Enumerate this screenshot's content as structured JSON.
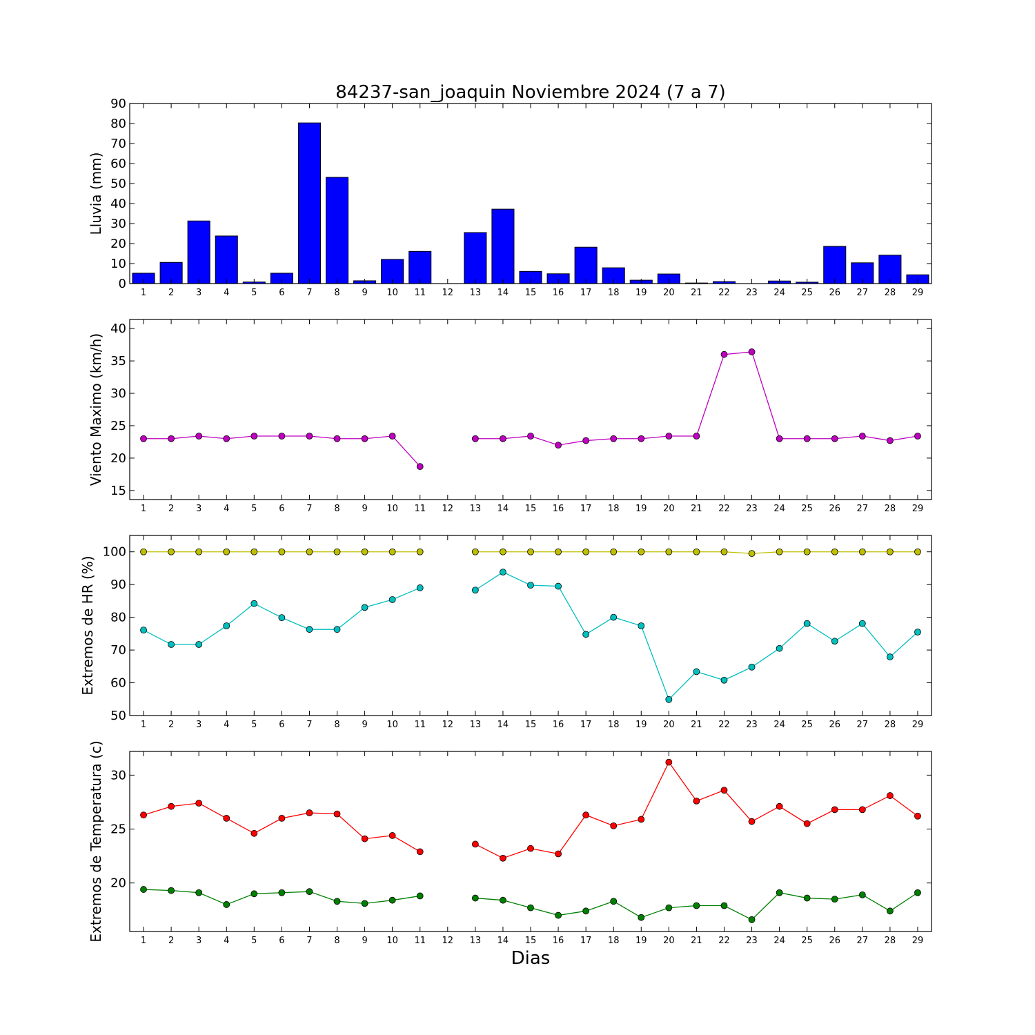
{
  "chart_data": [
    {
      "type": "bar",
      "title": "84237-san_joaquin Noviembre 2024  (7 a 7)",
      "xlabel": "",
      "ylabel": "Lluvia (mm)",
      "ylim": [
        0,
        90
      ],
      "yticks": [
        0,
        10,
        20,
        30,
        40,
        50,
        60,
        70,
        80,
        90
      ],
      "categories": [
        1,
        2,
        3,
        4,
        5,
        6,
        7,
        8,
        9,
        10,
        11,
        12,
        13,
        14,
        15,
        16,
        17,
        18,
        19,
        20,
        21,
        22,
        23,
        24,
        25,
        26,
        27,
        28,
        29
      ],
      "series": [
        {
          "color": "#0000ff",
          "values": [
            5.2,
            10.6,
            31.3,
            23.8,
            0.8,
            5.2,
            80.3,
            53.1,
            1.4,
            12.1,
            16.1,
            null,
            25.5,
            37.2,
            6.1,
            4.9,
            18.2,
            7.9,
            1.7,
            4.8,
            0.3,
            1.0,
            null,
            1.3,
            0.7,
            18.6,
            10.4,
            14.2,
            4.4
          ]
        }
      ]
    },
    {
      "type": "line",
      "title": "",
      "xlabel": "",
      "ylabel": "Viento Maximo (km/h)",
      "ylim": [
        13.6,
        41.4
      ],
      "yticks": [
        15,
        20,
        25,
        30,
        35,
        40
      ],
      "categories": [
        1,
        2,
        3,
        4,
        5,
        6,
        7,
        8,
        9,
        10,
        11,
        12,
        13,
        14,
        15,
        16,
        17,
        18,
        19,
        20,
        21,
        22,
        23,
        24,
        25,
        26,
        27,
        28,
        29
      ],
      "series": [
        {
          "color": "#bf00bf",
          "values": [
            23.0,
            23.0,
            23.4,
            23.0,
            23.4,
            23.4,
            23.4,
            23.0,
            23.0,
            23.4,
            18.7,
            null,
            23.0,
            23.0,
            23.4,
            22.0,
            22.7,
            23.0,
            23.0,
            23.4,
            23.4,
            36.0,
            36.4,
            23.0,
            23.0,
            23.0,
            23.4,
            22.7,
            23.4
          ]
        }
      ]
    },
    {
      "type": "line",
      "title": "",
      "xlabel": "",
      "ylabel": "Extremos de HR (%)",
      "ylim": [
        50,
        105
      ],
      "yticks": [
        50,
        60,
        70,
        80,
        90,
        100
      ],
      "categories": [
        1,
        2,
        3,
        4,
        5,
        6,
        7,
        8,
        9,
        10,
        11,
        12,
        13,
        14,
        15,
        16,
        17,
        18,
        19,
        20,
        21,
        22,
        23,
        24,
        25,
        26,
        27,
        28,
        29
      ],
      "series": [
        {
          "color": "#bfbf00",
          "values": [
            100,
            100,
            100,
            100,
            100,
            100,
            100,
            100,
            100,
            100,
            100,
            null,
            100,
            100,
            100,
            100,
            100,
            100,
            100,
            100,
            100,
            100,
            99.5,
            100,
            100,
            100,
            100,
            100,
            100
          ]
        },
        {
          "color": "#00bfbf",
          "values": [
            76.1,
            71.7,
            71.7,
            77.4,
            84.2,
            79.9,
            76.3,
            76.3,
            83.0,
            85.4,
            89.0,
            null,
            88.3,
            93.8,
            89.8,
            89.5,
            74.8,
            80.0,
            77.4,
            54.9,
            63.4,
            60.8,
            64.8,
            70.5,
            78.1,
            72.7,
            78.1,
            67.9,
            75.5
          ]
        }
      ]
    },
    {
      "type": "line",
      "title": "",
      "xlabel": "Dias",
      "ylabel": "Extremos de Temperatura (c)",
      "ylim": [
        15.5,
        32.2
      ],
      "yticks": [
        20,
        25,
        30
      ],
      "categories": [
        1,
        2,
        3,
        4,
        5,
        6,
        7,
        8,
        9,
        10,
        11,
        12,
        13,
        14,
        15,
        16,
        17,
        18,
        19,
        20,
        21,
        22,
        23,
        24,
        25,
        26,
        27,
        28,
        29
      ],
      "series": [
        {
          "color": "#ff0000",
          "values": [
            26.3,
            27.1,
            27.4,
            26.0,
            24.6,
            26.0,
            26.5,
            26.4,
            24.1,
            24.4,
            22.9,
            null,
            23.6,
            22.3,
            23.2,
            22.7,
            26.3,
            25.3,
            25.9,
            31.2,
            27.6,
            28.6,
            25.7,
            27.1,
            25.5,
            26.8,
            26.8,
            28.1,
            26.2
          ]
        },
        {
          "color": "#007f00",
          "values": [
            19.4,
            19.3,
            19.1,
            18.0,
            19.0,
            19.1,
            19.2,
            18.3,
            18.1,
            18.4,
            18.8,
            null,
            18.6,
            18.4,
            17.7,
            17.0,
            17.4,
            18.3,
            16.8,
            17.7,
            17.9,
            17.9,
            16.6,
            19.1,
            18.6,
            18.5,
            18.9,
            17.4,
            19.1
          ]
        }
      ]
    }
  ]
}
